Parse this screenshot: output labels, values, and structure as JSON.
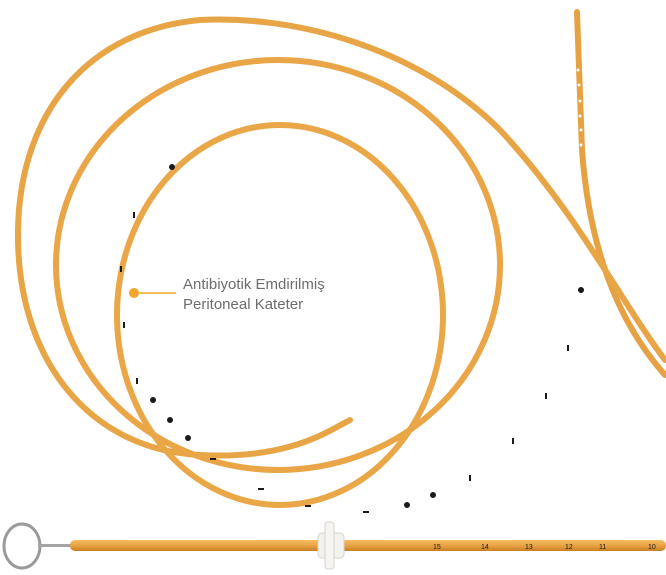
{
  "callout": {
    "line1": "Antibiyotik Emdirilmiş",
    "line2": "Peritoneal Kateter",
    "color": "#f3a42a"
  },
  "catheter": {
    "tube_color": "#e9a344",
    "marking_color": "#1a1a1a",
    "markings": [
      "10",
      "11",
      "12",
      "13",
      "14",
      "15"
    ]
  }
}
